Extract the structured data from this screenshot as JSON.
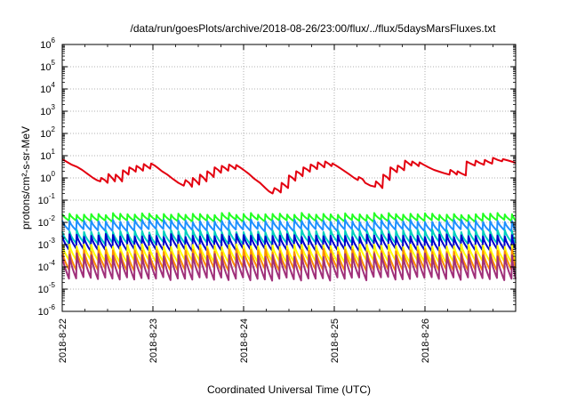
{
  "chart_data": {
    "type": "line",
    "title": "/data/run/goesPlots/archive/2018-08-26/23:00/flux/../flux/5daysMarsFluxes.txt",
    "xlabel": "Coordinated Universal Time (UTC)",
    "ylabel": "protons/cm²-s-sr-MeV",
    "y_scale": "log",
    "ylim_exponents": [
      -6,
      6
    ],
    "y_tick_exponents": [
      -6,
      -5,
      -4,
      -3,
      -2,
      -1,
      0,
      1,
      2,
      3,
      4,
      5,
      6
    ],
    "x_tick_labels": [
      "2018-8-22",
      "2018-8-23",
      "2018-8-24",
      "2018-8-25",
      "2018-8-26"
    ],
    "x_unit": "days since 2018-8-22 00:00",
    "xlim": [
      0,
      5
    ],
    "grid": true,
    "series": [
      {
        "color": "#e3000f",
        "points": [
          [
            0.0,
            7.0
          ],
          [
            0.06,
            5.0
          ],
          [
            0.1,
            4.0
          ],
          [
            0.16,
            3.2
          ],
          [
            0.22,
            2.3
          ],
          [
            0.28,
            1.5
          ],
          [
            0.34,
            1.0
          ],
          [
            0.38,
            0.8
          ],
          [
            0.42,
            0.7
          ],
          [
            0.43,
            1.0
          ],
          [
            0.47,
            0.8
          ],
          [
            0.5,
            0.6
          ],
          [
            0.51,
            1.5
          ],
          [
            0.55,
            1.0
          ],
          [
            0.58,
            0.7
          ],
          [
            0.59,
            1.4
          ],
          [
            0.63,
            1.0
          ],
          [
            0.66,
            0.7
          ],
          [
            0.67,
            2.2
          ],
          [
            0.7,
            1.8
          ],
          [
            0.73,
            1.4
          ],
          [
            0.74,
            3.0
          ],
          [
            0.78,
            2.4
          ],
          [
            0.81,
            1.9
          ],
          [
            0.82,
            3.5
          ],
          [
            0.86,
            2.7
          ],
          [
            0.89,
            2.1
          ],
          [
            0.9,
            4.2
          ],
          [
            0.94,
            3.2
          ],
          [
            0.97,
            2.6
          ],
          [
            0.98,
            4.5
          ],
          [
            1.02,
            3.6
          ],
          [
            1.06,
            2.7
          ],
          [
            1.1,
            2.0
          ],
          [
            1.16,
            1.4
          ],
          [
            1.22,
            0.9
          ],
          [
            1.28,
            0.6
          ],
          [
            1.34,
            0.45
          ],
          [
            1.36,
            0.8
          ],
          [
            1.4,
            0.6
          ],
          [
            1.43,
            0.4
          ],
          [
            1.44,
            1.0
          ],
          [
            1.48,
            0.7
          ],
          [
            1.51,
            0.5
          ],
          [
            1.52,
            1.4
          ],
          [
            1.56,
            1.0
          ],
          [
            1.59,
            0.7
          ],
          [
            1.6,
            2.0
          ],
          [
            1.64,
            1.5
          ],
          [
            1.67,
            1.1
          ],
          [
            1.68,
            3.0
          ],
          [
            1.72,
            2.3
          ],
          [
            1.75,
            1.7
          ],
          [
            1.76,
            3.5
          ],
          [
            1.8,
            2.7
          ],
          [
            1.83,
            2.1
          ],
          [
            1.84,
            4.0
          ],
          [
            1.88,
            3.1
          ],
          [
            1.91,
            2.5
          ],
          [
            1.92,
            3.8
          ],
          [
            1.96,
            3.0
          ],
          [
            2.0,
            2.3
          ],
          [
            2.06,
            1.5
          ],
          [
            2.12,
            0.9
          ],
          [
            2.18,
            0.6
          ],
          [
            2.24,
            0.35
          ],
          [
            2.28,
            0.25
          ],
          [
            2.32,
            0.2
          ],
          [
            2.34,
            0.35
          ],
          [
            2.38,
            0.28
          ],
          [
            2.41,
            0.22
          ],
          [
            2.42,
            0.6
          ],
          [
            2.46,
            0.45
          ],
          [
            2.49,
            0.35
          ],
          [
            2.5,
            1.3
          ],
          [
            2.54,
            1.0
          ],
          [
            2.57,
            0.75
          ],
          [
            2.58,
            2.0
          ],
          [
            2.62,
            1.6
          ],
          [
            2.65,
            1.2
          ],
          [
            2.66,
            3.0
          ],
          [
            2.7,
            2.4
          ],
          [
            2.73,
            1.9
          ],
          [
            2.74,
            4.0
          ],
          [
            2.78,
            3.2
          ],
          [
            2.81,
            2.5
          ],
          [
            2.82,
            5.0
          ],
          [
            2.86,
            3.8
          ],
          [
            2.89,
            3.0
          ],
          [
            2.9,
            5.5
          ],
          [
            2.94,
            4.3
          ],
          [
            2.97,
            3.4
          ],
          [
            2.98,
            4.5
          ],
          [
            3.04,
            3.2
          ],
          [
            3.1,
            2.2
          ],
          [
            3.16,
            1.5
          ],
          [
            3.22,
            1.0
          ],
          [
            3.26,
            0.8
          ],
          [
            3.27,
            1.1
          ],
          [
            3.31,
            0.9
          ],
          [
            3.33,
            0.7
          ],
          [
            3.34,
            0.6
          ],
          [
            3.4,
            0.45
          ],
          [
            3.45,
            0.4
          ],
          [
            3.46,
            0.7
          ],
          [
            3.5,
            0.5
          ],
          [
            3.53,
            0.35
          ],
          [
            3.54,
            1.4
          ],
          [
            3.58,
            1.1
          ],
          [
            3.61,
            0.8
          ],
          [
            3.62,
            3.0
          ],
          [
            3.66,
            2.3
          ],
          [
            3.69,
            1.8
          ],
          [
            3.7,
            3.6
          ],
          [
            3.74,
            2.8
          ],
          [
            3.77,
            2.2
          ],
          [
            3.78,
            6.0
          ],
          [
            3.82,
            4.5
          ],
          [
            3.85,
            3.6
          ],
          [
            3.86,
            5.5
          ],
          [
            3.9,
            4.3
          ],
          [
            3.93,
            3.4
          ],
          [
            3.94,
            5.0
          ],
          [
            3.98,
            4.0
          ],
          [
            4.04,
            3.0
          ],
          [
            4.1,
            2.3
          ],
          [
            4.16,
            1.9
          ],
          [
            4.22,
            1.6
          ],
          [
            4.27,
            1.4
          ],
          [
            4.28,
            2.3
          ],
          [
            4.32,
            1.8
          ],
          [
            4.35,
            1.4
          ],
          [
            4.36,
            2.0
          ],
          [
            4.4,
            1.6
          ],
          [
            4.45,
            1.3
          ],
          [
            4.46,
            5.5
          ],
          [
            4.5,
            4.5
          ],
          [
            4.55,
            3.6
          ],
          [
            4.56,
            6.0
          ],
          [
            4.6,
            4.8
          ],
          [
            4.65,
            3.9
          ],
          [
            4.66,
            6.5
          ],
          [
            4.7,
            5.2
          ],
          [
            4.74,
            4.4
          ],
          [
            4.75,
            8.0
          ],
          [
            4.8,
            6.5
          ],
          [
            4.85,
            5.6
          ],
          [
            4.86,
            7.0
          ],
          [
            4.92,
            6.0
          ],
          [
            5.0,
            4.8
          ]
        ]
      },
      {
        "color": "#22ff22",
        "base": 0.024,
        "low": 0.012,
        "half_life": 0.012,
        "jitter": 0.12
      },
      {
        "color": "#1e90ff",
        "base": 0.012,
        "low": 0.0045,
        "half_life": 0.018,
        "jitter": 0.14
      },
      {
        "color": "#00d0c0",
        "base": 0.0042,
        "low": 0.0012,
        "half_life": 0.028,
        "jitter": 0.15
      },
      {
        "color": "#0000cc",
        "base": 0.0026,
        "low": 0.0006,
        "half_life": 0.022,
        "jitter": 0.16
      },
      {
        "color": "#ffff00",
        "base": 0.0009,
        "low": 0.00018,
        "half_life": 0.022,
        "jitter": 0.16
      },
      {
        "color": "#ff8c00",
        "base": 0.00055,
        "low": 8e-05,
        "half_life": 0.02,
        "jitter": 0.18
      },
      {
        "color": "#a0307a",
        "base": 0.00035,
        "low": 3e-05,
        "half_life": 0.018,
        "jitter": 0.2
      }
    ]
  }
}
